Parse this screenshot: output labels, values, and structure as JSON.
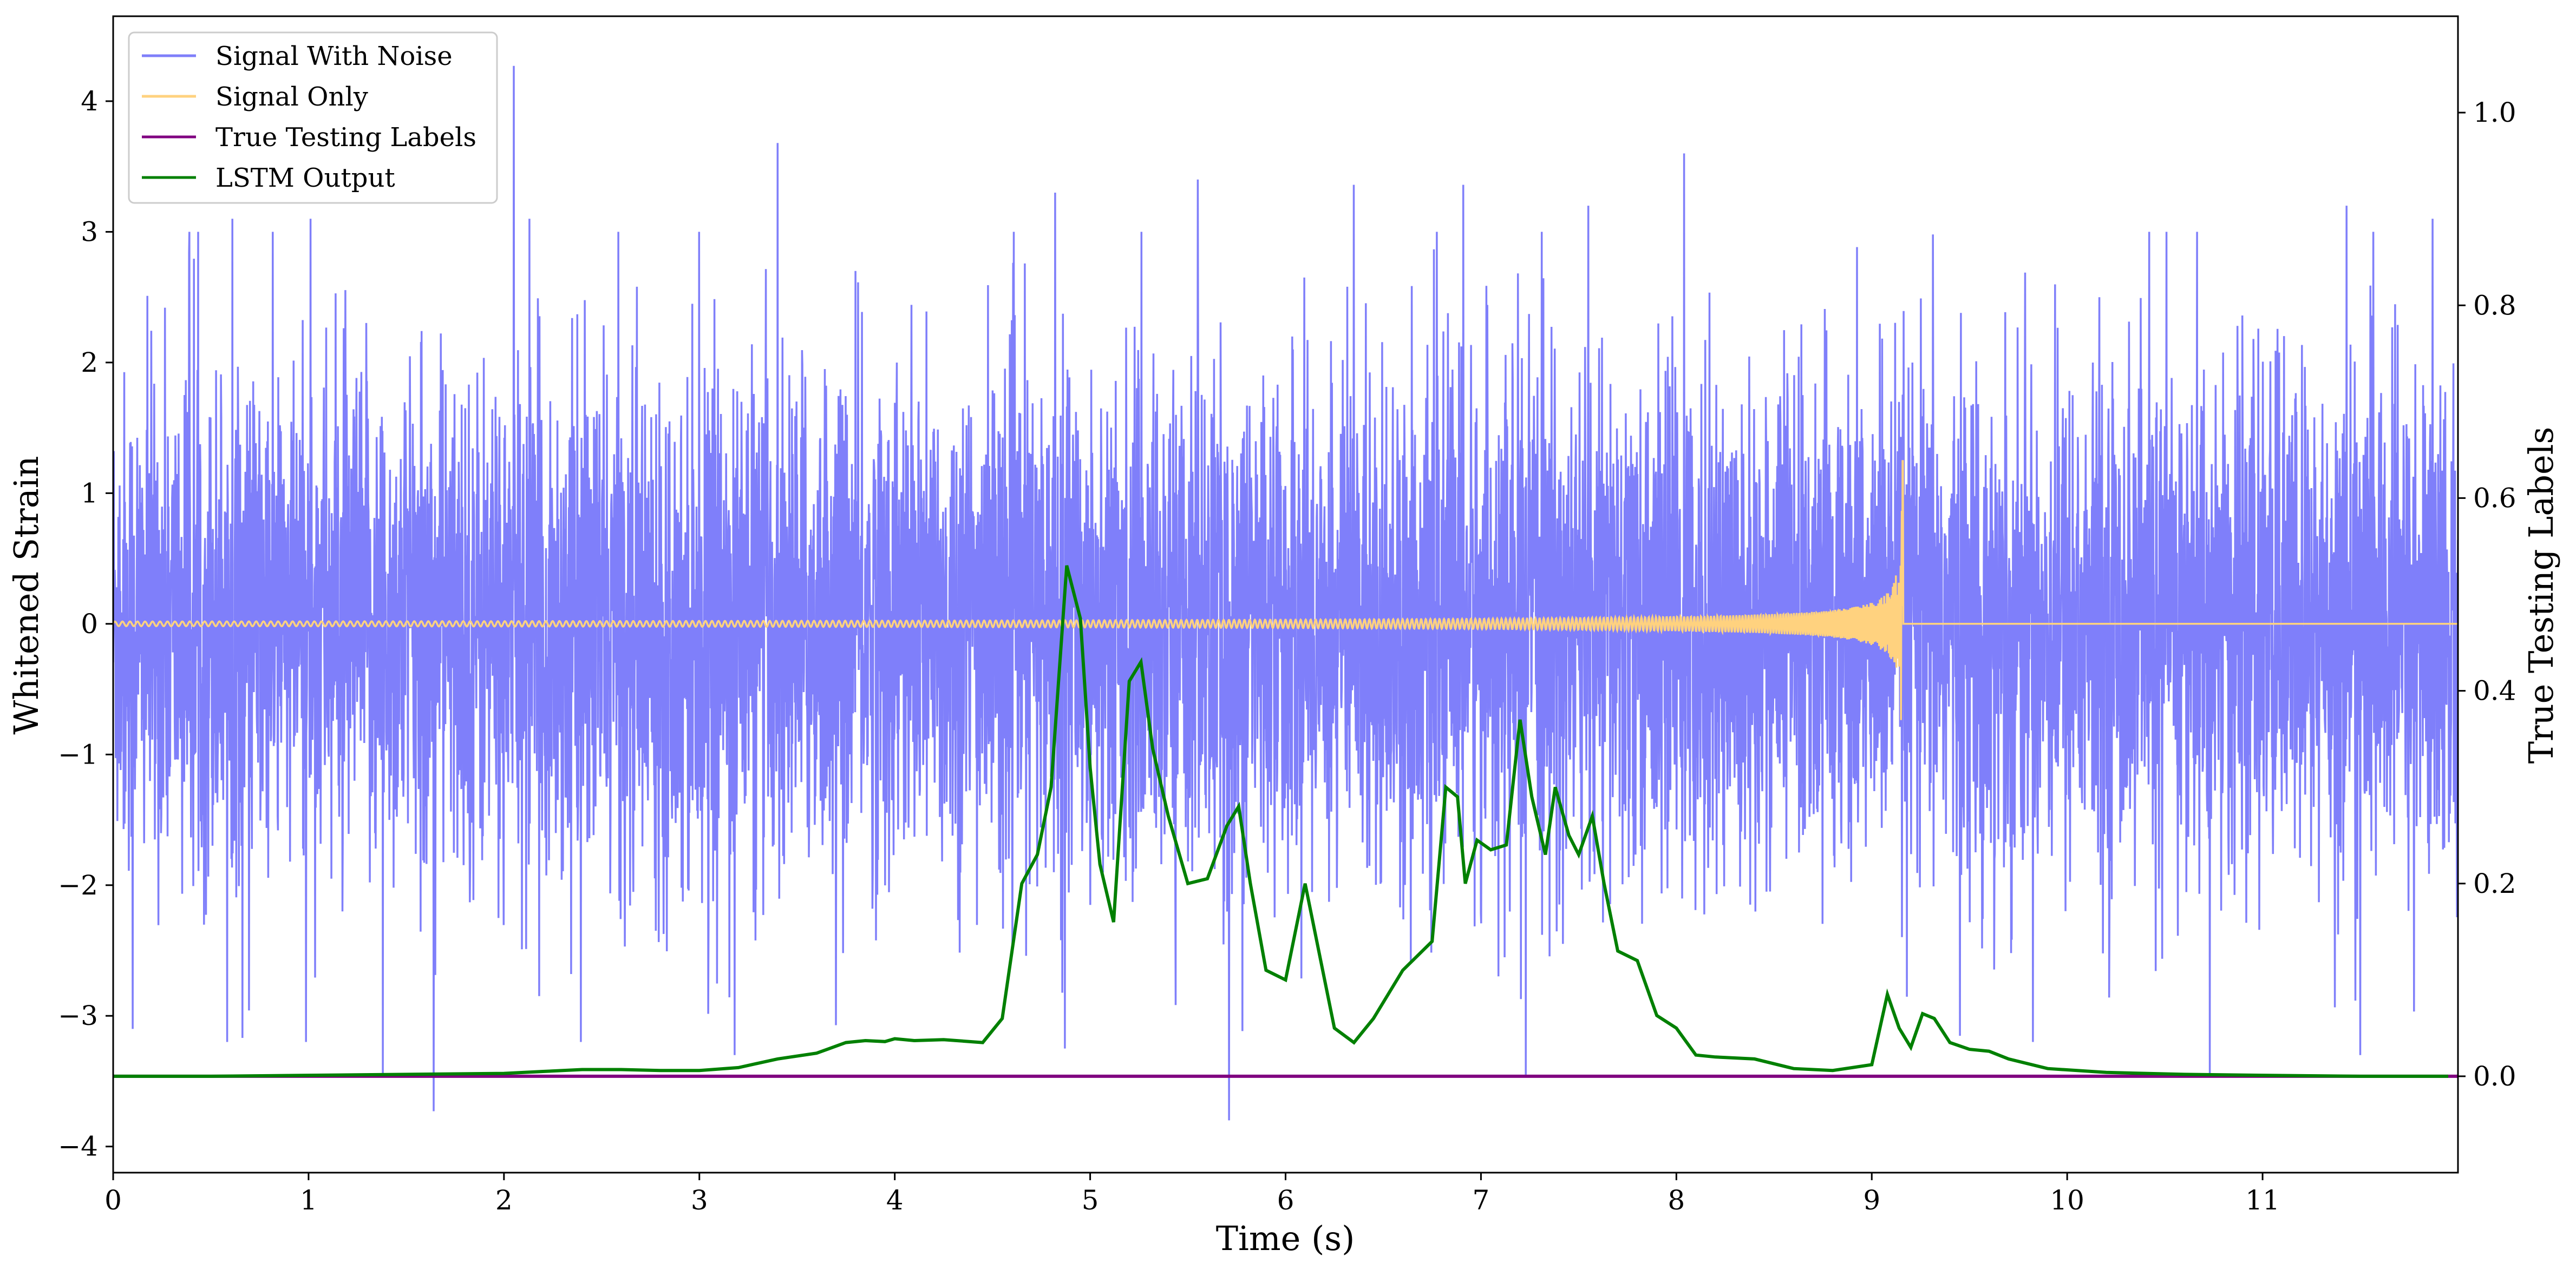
{
  "chart_data": {
    "type": "line",
    "xlabel": "Time (s)",
    "ylabel": "Whitened Strain",
    "y2label": "True Testing Labels",
    "xlim": [
      0,
      12.0
    ],
    "ylim": [
      -4.2,
      4.65
    ],
    "y2lim": [
      -0.1,
      1.1
    ],
    "x_ticks": [
      "0",
      "1",
      "2",
      "3",
      "4",
      "5",
      "6",
      "7",
      "8",
      "9",
      "10",
      "11"
    ],
    "y_ticks": [
      "−4",
      "−3",
      "−2",
      "−1",
      "0",
      "1",
      "2",
      "3",
      "4"
    ],
    "y2_ticks": [
      "0.0",
      "0.2",
      "0.4",
      "0.6",
      "0.8",
      "1.0"
    ],
    "grid": false,
    "legend_position": "top-left",
    "legend": [
      "Signal With Noise",
      "Signal Only",
      "True Testing Labels",
      "LSTM Output"
    ],
    "series": [
      {
        "name": "Signal With Noise",
        "axis": "left",
        "color": "#7f7ffa",
        "description": "dense whitened strain noise, roughly ±1.5 envelope with spikes",
        "notable_peaks": [
          [
            0.39,
            3.0
          ],
          [
            0.61,
            3.1
          ],
          [
            1.01,
            3.1
          ],
          [
            2.05,
            4.27
          ],
          [
            2.13,
            3.1
          ],
          [
            3.4,
            3.68
          ],
          [
            4.82,
            3.3
          ],
          [
            5.55,
            3.4
          ],
          [
            6.35,
            3.36
          ],
          [
            6.91,
            3.36
          ],
          [
            7.55,
            3.2
          ],
          [
            8.04,
            3.6
          ],
          [
            11.43,
            3.2
          ],
          [
            11.87,
            3.1
          ]
        ],
        "notable_troughs": [
          [
            0.1,
            -3.1
          ],
          [
            1.38,
            -3.45
          ],
          [
            1.64,
            -3.73
          ],
          [
            3.18,
            -3.3
          ],
          [
            4.87,
            -3.25
          ],
          [
            5.71,
            -3.8
          ],
          [
            7.23,
            -3.45
          ],
          [
            10.73,
            -3.45
          ],
          [
            11.5,
            -3.3
          ]
        ]
      },
      {
        "name": "Signal Only",
        "axis": "left",
        "color": "#ffd27f",
        "description": "chirp near zero growing to ±1.25 and ending at t≈9.16 s",
        "merger_time": 9.16,
        "peak_amplitude": 1.25
      },
      {
        "name": "True Testing Labels",
        "axis": "right",
        "color": "#800080",
        "x": [
          0,
          12.0
        ],
        "values": [
          0,
          0
        ]
      },
      {
        "name": "LSTM Output",
        "axis": "right",
        "color": "#008000",
        "x": [
          0,
          0.5,
          1.0,
          1.5,
          2.0,
          2.2,
          2.4,
          2.6,
          2.8,
          3.0,
          3.2,
          3.4,
          3.6,
          3.75,
          3.85,
          3.95,
          4.0,
          4.1,
          4.25,
          4.45,
          4.55,
          4.65,
          4.73,
          4.8,
          4.88,
          4.95,
          5.0,
          5.05,
          5.12,
          5.2,
          5.26,
          5.32,
          5.4,
          5.5,
          5.6,
          5.7,
          5.76,
          5.82,
          5.9,
          6.0,
          6.1,
          6.25,
          6.35,
          6.45,
          6.6,
          6.75,
          6.82,
          6.88,
          6.92,
          6.98,
          7.05,
          7.13,
          7.2,
          7.26,
          7.33,
          7.38,
          7.45,
          7.5,
          7.57,
          7.63,
          7.7,
          7.8,
          7.9,
          8.0,
          8.1,
          8.2,
          8.4,
          8.6,
          8.8,
          9.0,
          9.08,
          9.14,
          9.2,
          9.26,
          9.32,
          9.4,
          9.5,
          9.6,
          9.7,
          9.9,
          10.2,
          10.6,
          11.0,
          11.5,
          11.95
        ],
        "values": [
          0.0,
          0.0,
          0.001,
          0.002,
          0.003,
          0.005,
          0.007,
          0.007,
          0.006,
          0.006,
          0.009,
          0.018,
          0.024,
          0.035,
          0.037,
          0.036,
          0.039,
          0.037,
          0.038,
          0.035,
          0.06,
          0.2,
          0.23,
          0.3,
          0.53,
          0.475,
          0.32,
          0.22,
          0.16,
          0.41,
          0.43,
          0.34,
          0.27,
          0.2,
          0.205,
          0.26,
          0.28,
          0.2,
          0.11,
          0.1,
          0.2,
          0.05,
          0.035,
          0.06,
          0.11,
          0.14,
          0.3,
          0.29,
          0.2,
          0.245,
          0.235,
          0.24,
          0.37,
          0.29,
          0.23,
          0.3,
          0.25,
          0.23,
          0.27,
          0.2,
          0.13,
          0.12,
          0.063,
          0.05,
          0.022,
          0.02,
          0.018,
          0.008,
          0.006,
          0.012,
          0.085,
          0.05,
          0.03,
          0.065,
          0.06,
          0.035,
          0.028,
          0.026,
          0.018,
          0.008,
          0.004,
          0.002,
          0.001,
          0.0,
          0.0
        ]
      }
    ]
  }
}
